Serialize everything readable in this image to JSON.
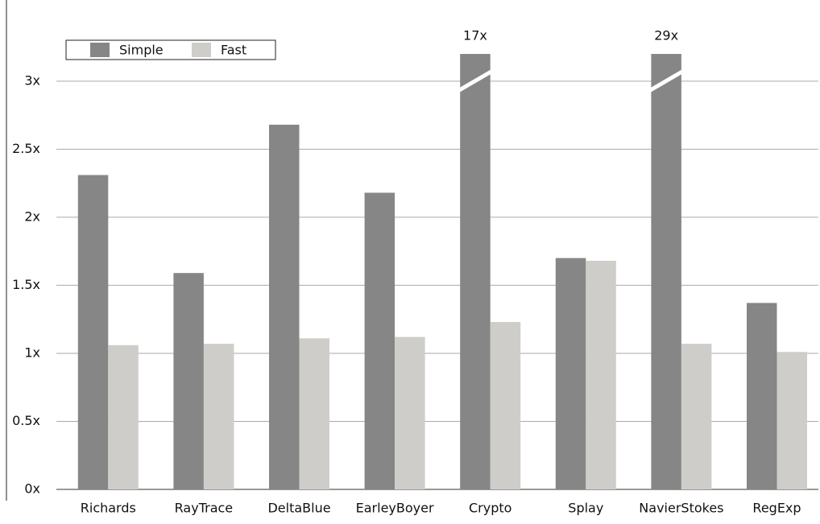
{
  "chart_data": {
    "type": "bar",
    "categories": [
      "Richards",
      "RayTrace",
      "DeltaBlue",
      "EarleyBoyer",
      "Crypto",
      "Splay",
      "NavierStokes",
      "RegExp"
    ],
    "series": [
      {
        "name": "Simple",
        "color": "#858685",
        "values": [
          2.31,
          1.59,
          2.68,
          2.18,
          17,
          1.7,
          29,
          1.37
        ],
        "value_labels": [
          null,
          null,
          null,
          null,
          "17x",
          null,
          "29x",
          null
        ]
      },
      {
        "name": "Fast",
        "color": "#cfcdca",
        "values": [
          1.06,
          1.07,
          1.11,
          1.12,
          1.23,
          1.68,
          1.07,
          1.01
        ]
      }
    ],
    "ylim": [
      0,
      3.2
    ],
    "yticks": [
      {
        "value": 0,
        "label": "0x"
      },
      {
        "value": 0.5,
        "label": "0.5x"
      },
      {
        "value": 1,
        "label": "1x"
      },
      {
        "value": 1.5,
        "label": "1.5x"
      },
      {
        "value": 2,
        "label": "2x"
      },
      {
        "value": 2.5,
        "label": "2.5x"
      },
      {
        "value": 3,
        "label": "3x"
      }
    ],
    "grid": true,
    "legend": "top-left"
  }
}
